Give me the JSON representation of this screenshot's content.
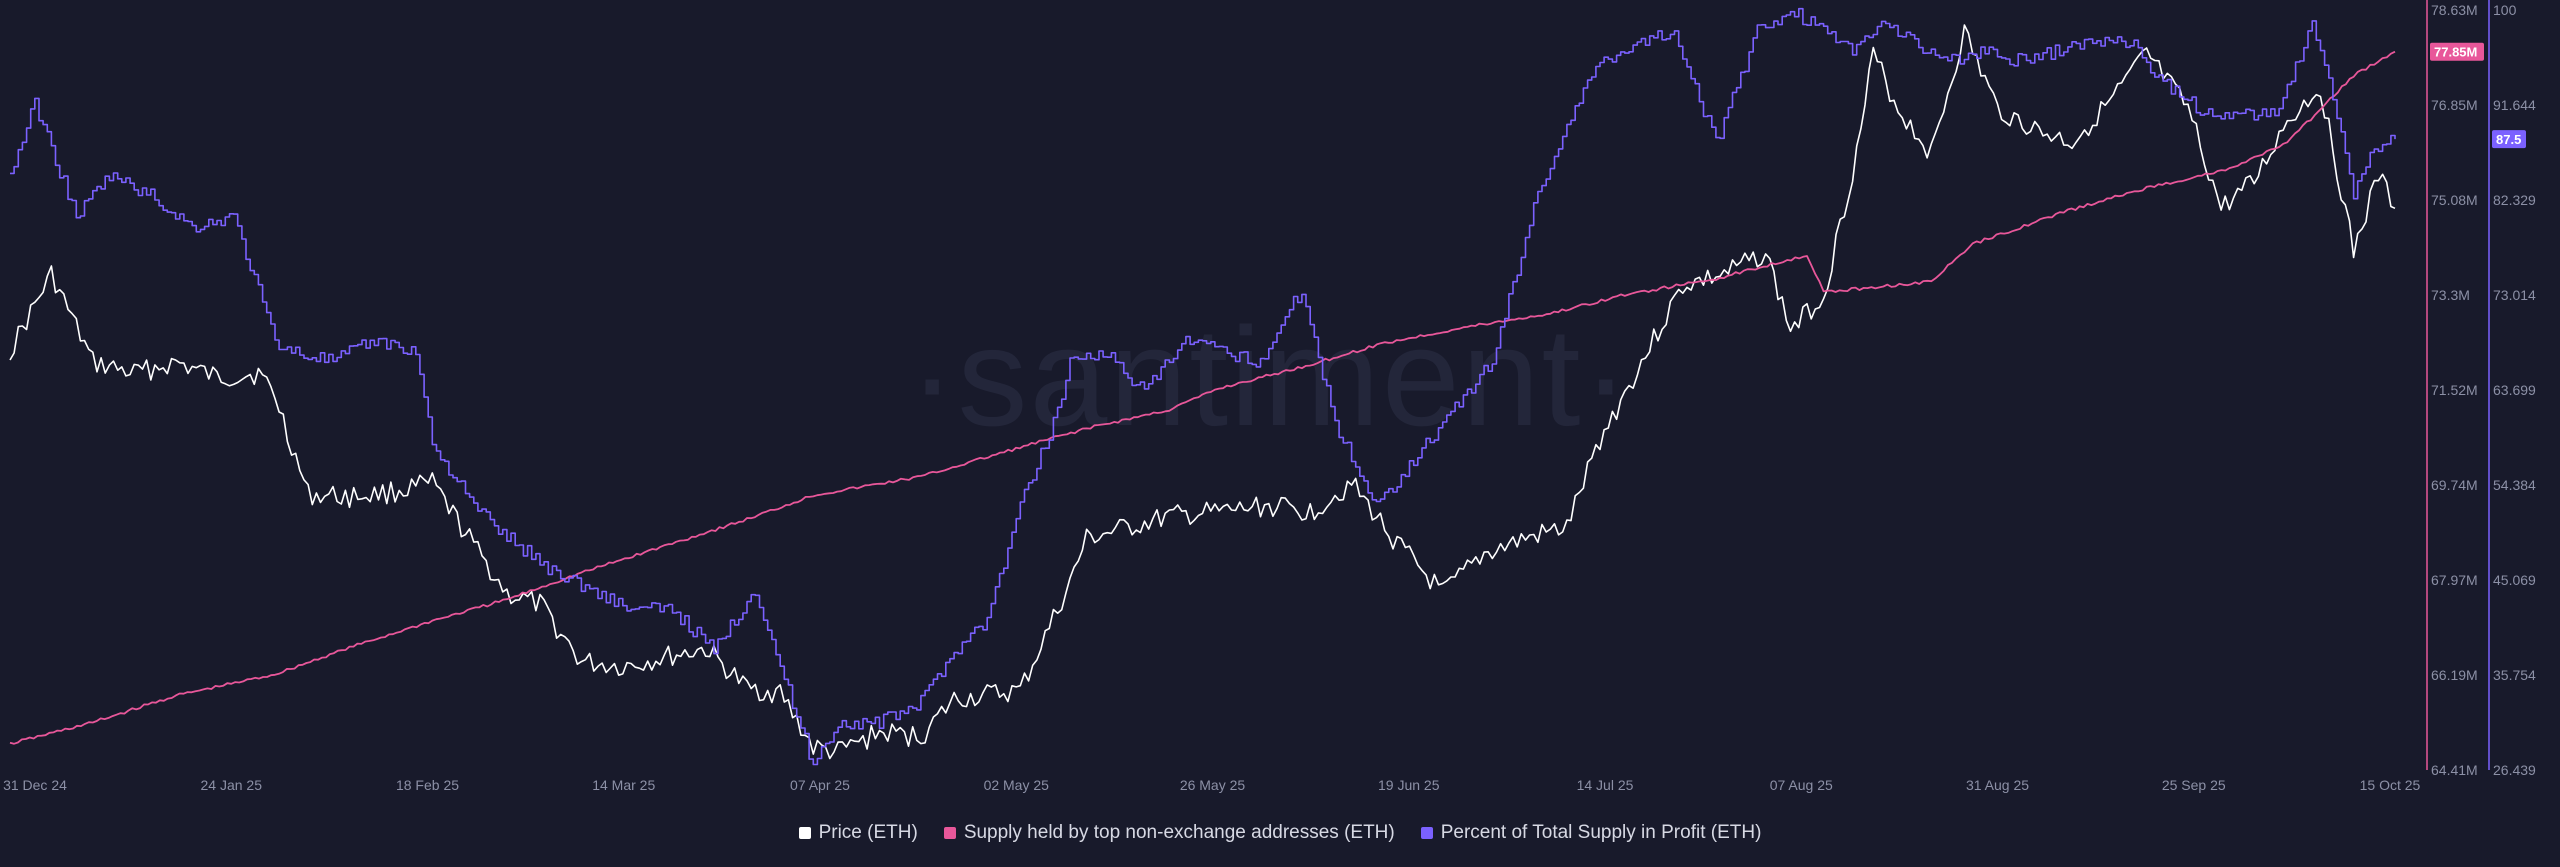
{
  "chart_data": {
    "type": "line",
    "watermark": "·santiment·",
    "x_ticks": [
      "31 Dec 24",
      "24 Jan 25",
      "18 Feb 25",
      "14 Mar 25",
      "07 Apr 25",
      "02 May 25",
      "26 May 25",
      "19 Jun 25",
      "14 Jul 25",
      "07 Aug 25",
      "31 Aug 25",
      "25 Sep 25",
      "15 Oct 25"
    ],
    "axes": {
      "supply": {
        "ticks": [
          "78.63M",
          "76.85M",
          "75.08M",
          "73.3M",
          "71.52M",
          "69.74M",
          "67.97M",
          "66.19M",
          "64.41M"
        ],
        "range": [
          64.41,
          78.63
        ],
        "unit": "M",
        "current_label": "77.85M",
        "color": "#e8579a"
      },
      "profit": {
        "ticks": [
          "100",
          "91.644",
          "82.329",
          "73.014",
          "63.699",
          "54.384",
          "45.069",
          "35.754",
          "26.439"
        ],
        "range": [
          26.439,
          100
        ],
        "current_label": "87.5",
        "color": "#7b61ff"
      }
    },
    "legend": [
      {
        "name": "Price (ETH)",
        "color": "#ffffff"
      },
      {
        "name": "Supply held by top non-exchange addresses (ETH)",
        "color": "#e8579a"
      },
      {
        "name": "Percent of Total Supply in Profit (ETH)",
        "color": "#7b61ff"
      }
    ],
    "series": [
      {
        "name": "Price (ETH)",
        "axis": "hidden",
        "color": "#ffffff",
        "x": [
          "2024-12-31",
          "2025-01-05",
          "2025-01-10",
          "2025-01-15",
          "2025-01-20",
          "2025-01-25",
          "2025-01-30",
          "2025-02-01",
          "2025-02-05",
          "2025-02-10",
          "2025-02-15",
          "2025-02-20",
          "2025-02-25",
          "2025-03-01",
          "2025-03-05",
          "2025-03-10",
          "2025-03-15",
          "2025-03-20",
          "2025-03-25",
          "2025-03-30",
          "2025-04-03",
          "2025-04-07",
          "2025-04-10",
          "2025-04-15",
          "2025-04-20",
          "2025-04-24",
          "2025-04-28",
          "2025-05-02",
          "2025-05-08",
          "2025-05-10",
          "2025-05-15",
          "2025-05-20",
          "2025-05-26",
          "2025-06-01",
          "2025-06-06",
          "2025-06-11",
          "2025-06-16",
          "2025-06-22",
          "2025-06-27",
          "2025-07-02",
          "2025-07-07",
          "2025-07-11",
          "2025-07-16",
          "2025-07-21",
          "2025-07-26",
          "2025-07-31",
          "2025-08-03",
          "2025-08-07",
          "2025-08-11",
          "2025-08-13",
          "2025-08-16",
          "2025-08-20",
          "2025-08-24",
          "2025-08-28",
          "2025-09-02",
          "2025-09-06",
          "2025-09-11",
          "2025-09-15",
          "2025-09-20",
          "2025-09-24",
          "2025-09-28",
          "2025-10-02",
          "2025-10-06",
          "2025-10-10",
          "2025-10-13",
          "2025-10-15"
        ],
        "values": [
          3350,
          3700,
          3300,
          3250,
          3300,
          3230,
          3250,
          3150,
          2700,
          2690,
          2710,
          2750,
          2470,
          2250,
          2200,
          1940,
          1920,
          1960,
          2000,
          1820,
          1800,
          1550,
          1530,
          1620,
          1600,
          1770,
          1790,
          1810,
          2300,
          2500,
          2550,
          2600,
          2620,
          2650,
          2620,
          2750,
          2500,
          2250,
          2430,
          2500,
          2550,
          2950,
          3300,
          3650,
          3700,
          3800,
          3450,
          3600,
          4250,
          4700,
          4450,
          4250,
          4800,
          4450,
          4350,
          4300,
          4500,
          4700,
          4450,
          4000,
          4120,
          4400,
          4550,
          3800,
          4150,
          4000
        ]
      },
      {
        "name": "Supply held by top non-exchange addresses (ETH)",
        "axis": "supply",
        "color": "#e8579a",
        "x": [
          "2024-12-31",
          "2025-01-10",
          "2025-01-20",
          "2025-02-01",
          "2025-02-10",
          "2025-02-20",
          "2025-03-01",
          "2025-03-10",
          "2025-03-20",
          "2025-03-30",
          "2025-04-07",
          "2025-04-20",
          "2025-05-01",
          "2025-05-10",
          "2025-05-20",
          "2025-05-26",
          "2025-06-05",
          "2025-06-15",
          "2025-06-25",
          "2025-07-05",
          "2025-07-14",
          "2025-07-25",
          "2025-08-05",
          "2025-08-07",
          "2025-08-20",
          "2025-08-25",
          "2025-09-05",
          "2025-09-15",
          "2025-09-25",
          "2025-10-02",
          "2025-10-10",
          "2025-10-15"
        ],
        "values": [
          64.9,
          65.3,
          65.8,
          66.2,
          66.7,
          67.2,
          67.6,
          68.1,
          68.6,
          69.1,
          69.55,
          69.9,
          70.4,
          70.8,
          71.15,
          71.55,
          71.95,
          72.4,
          72.7,
          72.95,
          73.3,
          73.6,
          74.05,
          73.35,
          73.55,
          74.25,
          74.85,
          75.3,
          75.65,
          76.15,
          77.4,
          77.85
        ]
      },
      {
        "name": "Percent of Total Supply in Profit (ETH)",
        "axis": "profit",
        "color": "#7b61ff",
        "x": [
          "2024-12-31",
          "2025-01-03",
          "2025-01-08",
          "2025-01-12",
          "2025-01-17",
          "2025-01-22",
          "2025-01-27",
          "2025-02-01",
          "2025-02-03",
          "2025-02-08",
          "2025-02-13",
          "2025-02-18",
          "2025-02-20",
          "2025-02-25",
          "2025-03-01",
          "2025-03-06",
          "2025-03-11",
          "2025-03-16",
          "2025-03-21",
          "2025-03-26",
          "2025-03-31",
          "2025-04-04",
          "2025-04-07",
          "2025-04-10",
          "2025-04-15",
          "2025-04-20",
          "2025-04-24",
          "2025-04-28",
          "2025-05-02",
          "2025-05-06",
          "2025-05-08",
          "2025-05-12",
          "2025-05-17",
          "2025-05-22",
          "2025-05-26",
          "2025-05-31",
          "2025-06-05",
          "2025-06-09",
          "2025-06-14",
          "2025-06-18",
          "2025-06-23",
          "2025-06-28",
          "2025-07-03",
          "2025-07-07",
          "2025-07-11",
          "2025-07-16",
          "2025-07-20",
          "2025-07-25",
          "2025-07-30",
          "2025-08-03",
          "2025-08-07",
          "2025-08-11",
          "2025-08-14",
          "2025-08-18",
          "2025-08-22",
          "2025-08-26",
          "2025-08-31",
          "2025-09-04",
          "2025-09-09",
          "2025-09-13",
          "2025-09-17",
          "2025-09-22",
          "2025-09-26",
          "2025-10-01",
          "2025-10-05",
          "2025-10-08",
          "2025-10-10",
          "2025-10-12",
          "2025-10-15"
        ],
        "values": [
          84,
          91,
          80,
          84,
          82,
          79,
          80,
          68,
          67,
          66,
          68,
          67,
          58,
          52,
          49,
          46,
          44,
          42,
          42,
          38,
          44,
          34,
          27,
          31,
          31,
          33,
          38,
          41,
          52,
          60,
          66,
          67,
          63,
          68,
          67,
          66,
          73,
          60,
          52,
          56,
          61,
          66,
          81,
          89,
          95,
          97,
          98,
          87,
          98,
          100,
          98,
          96,
          99,
          97,
          95,
          96,
          95,
          96,
          97,
          97,
          93,
          90,
          90,
          90,
          99,
          90,
          82,
          86,
          87.5
        ]
      }
    ]
  }
}
